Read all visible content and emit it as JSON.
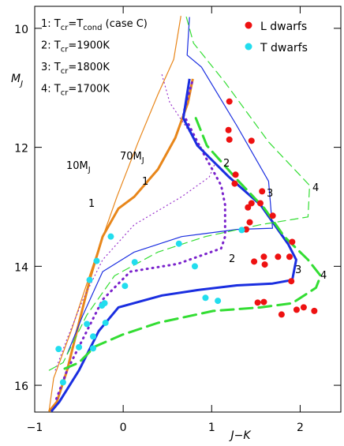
{
  "chart_data": {
    "type": "scatter",
    "xlabel": "J−K",
    "ylabel": [
      "M",
      "J"
    ],
    "xlim": [
      -1,
      2.46
    ],
    "ylim": [
      9.63,
      16.45
    ],
    "xticks": [
      {
        "value": -1,
        "label": "−1"
      },
      0,
      1,
      2
    ],
    "yticks": [
      10,
      12,
      14,
      16
    ],
    "invert_y": true,
    "model_key": [
      [
        "1: T",
        "cr",
        "=T",
        "cond",
        " (case C)"
      ],
      [
        "2: T",
        "cr",
        "=1900K"
      ],
      [
        "3: T",
        "cr",
        "=1800K"
      ],
      [
        "4: T",
        "cr",
        "=1700K"
      ]
    ],
    "annotations": [
      [
        "10M",
        "J"
      ],
      [
        "70M",
        "J"
      ],
      [
        "1"
      ],
      [
        "1"
      ],
      [
        "2"
      ],
      [
        "2"
      ],
      [
        "3"
      ],
      [
        "3"
      ],
      [
        "4"
      ],
      [
        "4"
      ]
    ],
    "series": [
      {
        "name": "L dwarfs",
        "color": "#ee1111",
        "x": [
          1.2,
          1.19,
          1.2,
          1.45,
          1.27,
          1.26,
          1.57,
          1.55,
          1.45,
          1.41,
          1.69,
          1.43,
          1.39,
          1.91,
          1.48,
          1.59,
          1.6,
          1.75,
          1.88,
          1.9,
          1.52,
          1.59,
          1.79,
          1.96,
          2.04,
          2.16
        ],
        "values": [
          11.23,
          11.71,
          11.87,
          11.89,
          12.46,
          12.61,
          12.74,
          12.94,
          12.94,
          13.01,
          13.15,
          13.26,
          13.38,
          13.59,
          13.92,
          13.84,
          13.97,
          13.84,
          13.84,
          14.25,
          14.61,
          14.6,
          14.81,
          14.73,
          14.69,
          14.75
        ]
      },
      {
        "name": "T dwarfs",
        "color": "#22ddee",
        "x": [
          -0.14,
          -0.3,
          -0.38,
          0.63,
          0.13,
          0.81,
          0.02,
          1.34,
          -0.24,
          -0.21,
          0.93,
          1.07,
          -0.2,
          -0.41,
          -0.34,
          -0.5,
          -0.34,
          -0.73,
          -0.68
        ],
        "values": [
          13.5,
          13.91,
          14.23,
          13.62,
          13.93,
          14.0,
          14.33,
          13.39,
          14.66,
          14.62,
          14.53,
          14.58,
          14.95,
          14.97,
          15.18,
          15.36,
          15.38,
          15.39,
          15.95
        ]
      }
    ],
    "lines": [
      {
        "color": "#e8861a",
        "width": 1.2,
        "dash": "none",
        "x": [
          0.652,
          0.571,
          0.393,
          0.17,
          -0.071,
          -0.321,
          -0.589,
          -0.786,
          -0.839
        ],
        "y": [
          9.79,
          10.52,
          11.11,
          11.91,
          12.83,
          13.89,
          15.09,
          15.88,
          16.44
        ]
      },
      {
        "color": "#e8861a",
        "width": 3,
        "dash": "none",
        "x": [
          0.786,
          0.732,
          0.589,
          0.393,
          0.125,
          -0.054,
          -0.232,
          -0.366,
          -0.5,
          -0.634,
          -0.75,
          -0.839
        ],
        "y": [
          10.85,
          11.25,
          11.84,
          12.37,
          12.83,
          13.03,
          13.5,
          14.16,
          14.95,
          15.75,
          16.28,
          16.44
        ]
      },
      {
        "color": "#9933cc",
        "width": 1.2,
        "dash": "1 4",
        "x": [
          0.438,
          0.527,
          0.795,
          1.036,
          0.973,
          0.661,
          0.125,
          -0.232,
          -0.455,
          -0.634,
          -0.768
        ],
        "y": [
          10.78,
          11.25,
          11.84,
          12.28,
          12.5,
          12.83,
          13.3,
          13.89,
          14.56,
          15.22,
          15.75
        ]
      },
      {
        "color": "#7a22cc",
        "width": 3,
        "dash": "1 6",
        "x": [
          0.777,
          0.679,
          0.884,
          1.107,
          1.152,
          1.152,
          1.107,
          0.616,
          0.08,
          -0.232,
          -0.411,
          -0.634,
          -0.768
        ],
        "y": [
          10.91,
          11.44,
          12.04,
          12.64,
          12.97,
          13.5,
          13.7,
          13.96,
          14.09,
          14.56,
          15.09,
          15.75,
          16.28
        ]
      },
      {
        "color": "#1a2ee0",
        "width": 1.2,
        "dash": "none",
        "x": [
          0.75,
          0.723,
          0.884,
          1.286,
          1.643,
          1.688,
          1.286,
          0.661,
          0.125,
          -0.232,
          -0.455,
          -0.634
        ],
        "y": [
          9.81,
          10.45,
          10.65,
          11.64,
          12.57,
          13.36,
          13.38,
          13.5,
          13.76,
          14.09,
          14.82,
          15.48
        ]
      },
      {
        "color": "#1a2ee0",
        "width": 3,
        "dash": "none",
        "x": [
          0.75,
          0.679,
          0.839,
          1.196,
          1.554,
          1.866,
          1.955,
          1.911,
          1.688,
          1.286,
          0.839,
          0.438,
          -0.054,
          -0.277,
          -0.5,
          -0.723,
          -0.813
        ],
        "y": [
          10.85,
          11.51,
          11.97,
          12.5,
          12.97,
          13.63,
          13.89,
          14.23,
          14.29,
          14.32,
          14.4,
          14.49,
          14.69,
          15.09,
          15.75,
          16.28,
          16.44
        ]
      },
      {
        "color": "#33dd33",
        "width": 1.2,
        "dash": "10 6",
        "x": [
          0.714,
          0.795,
          1.152,
          1.643,
          2.107,
          2.089,
          1.554,
          0.929,
          0.393,
          -0.098,
          -0.411,
          -0.679,
          -0.839
        ],
        "y": [
          9.81,
          10.25,
          10.91,
          11.91,
          12.64,
          13.17,
          13.3,
          13.5,
          13.76,
          14.16,
          14.82,
          15.62,
          15.75
        ]
      },
      {
        "color": "#33dd33",
        "width": 3,
        "dash": "16 8",
        "x": [
          0.821,
          0.946,
          1.286,
          1.598,
          1.821,
          2.089,
          2.232,
          2.179,
          1.911,
          1.554,
          1.018,
          0.393,
          -0.009,
          -0.321,
          -0.5,
          -0.661
        ],
        "y": [
          11.51,
          11.97,
          12.54,
          13.03,
          13.5,
          13.89,
          14.16,
          14.36,
          14.62,
          14.69,
          14.75,
          14.95,
          15.15,
          15.35,
          15.62,
          15.72
        ]
      }
    ]
  }
}
